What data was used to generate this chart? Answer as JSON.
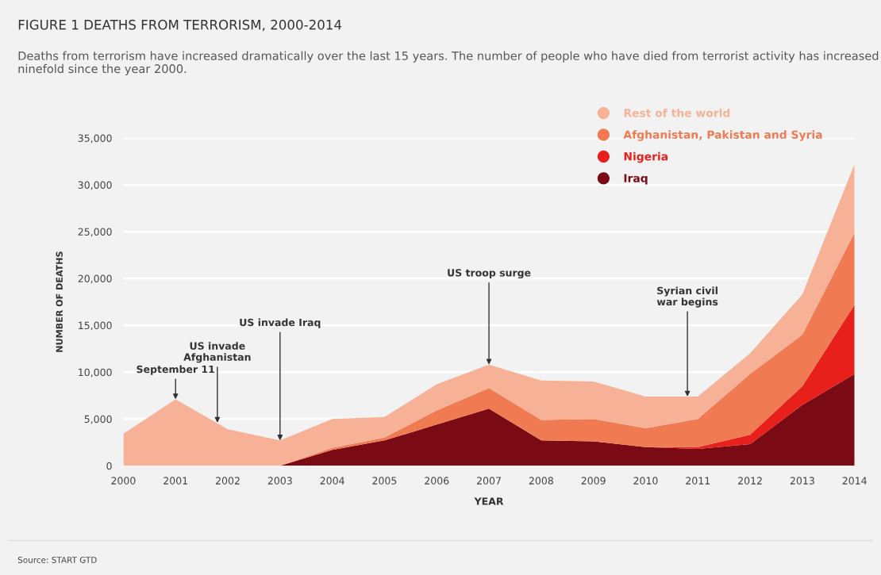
{
  "chart_data": {
    "type": "area",
    "stacked": true,
    "title": "FIGURE 1 DEATHS FROM TERRORISM, 2000-2014",
    "subtitle": "Deaths from terrorism have increased dramatically over the last 15 years. The number of people who have died from terrorist activity has increased ninefold since the year 2000.",
    "xlabel": "YEAR",
    "ylabel": "NUMBER OF DEATHS",
    "x": [
      2000,
      2001,
      2002,
      2003,
      2004,
      2005,
      2006,
      2007,
      2008,
      2009,
      2010,
      2011,
      2012,
      2013,
      2014
    ],
    "series": [
      {
        "name": "Iraq",
        "color": "#7a0a14",
        "values": [
          0,
          0,
          0,
          0,
          1700,
          2700,
          4400,
          6100,
          2700,
          2600,
          2000,
          1800,
          2300,
          6500,
          9800
        ]
      },
      {
        "name": "Nigeria",
        "color": "#e8201c",
        "values": [
          0,
          0,
          0,
          0,
          0,
          0,
          0,
          0,
          0,
          0,
          0,
          200,
          1000,
          2000,
          7400
        ]
      },
      {
        "name": "Afghanistan, Pakistan and Syria",
        "color": "#f07a52",
        "values": [
          0,
          0,
          0,
          0,
          200,
          300,
          1500,
          2200,
          2200,
          2400,
          2000,
          3000,
          6500,
          5500,
          7700
        ]
      },
      {
        "name": "Rest of the world",
        "color": "#f6b196",
        "values": [
          3400,
          7100,
          3900,
          2700,
          3100,
          2200,
          2800,
          2500,
          4200,
          4000,
          3400,
          2400,
          2200,
          4300,
          7300
        ]
      }
    ],
    "xlim": [
      2000,
      2014
    ],
    "ylim": [
      0,
      35000
    ],
    "xticks": [
      2000,
      2001,
      2002,
      2003,
      2004,
      2005,
      2006,
      2007,
      2008,
      2009,
      2010,
      2011,
      2012,
      2013,
      2014
    ],
    "yticks": [
      0,
      {
        "value": 5000,
        "label": "5,000"
      },
      {
        "value": 10000,
        "label": "10,000"
      },
      {
        "value": 15000,
        "label": "15,000"
      },
      {
        "value": 20000,
        "label": "20,000"
      },
      {
        "value": 25000,
        "label": "25,000"
      },
      {
        "value": 30000,
        "label": "30,000"
      },
      {
        "value": 35000,
        "label": "35,000"
      }
    ],
    "grid": "y",
    "legend": "top right",
    "annotations": [
      {
        "text": "September 11",
        "x": 2001,
        "y": 7100
      },
      {
        "text": "US invade\nAfghanistan",
        "x": 2001.8,
        "y": 4600
      },
      {
        "text": "US invade Iraq",
        "x": 2003,
        "y": 2700
      },
      {
        "text": "US troop surge",
        "x": 2007,
        "y": 10800
      },
      {
        "text": "Syrian civil\nwar begins",
        "x": 2010.8,
        "y": 7400
      },
      "Source: START GTD"
    ]
  }
}
